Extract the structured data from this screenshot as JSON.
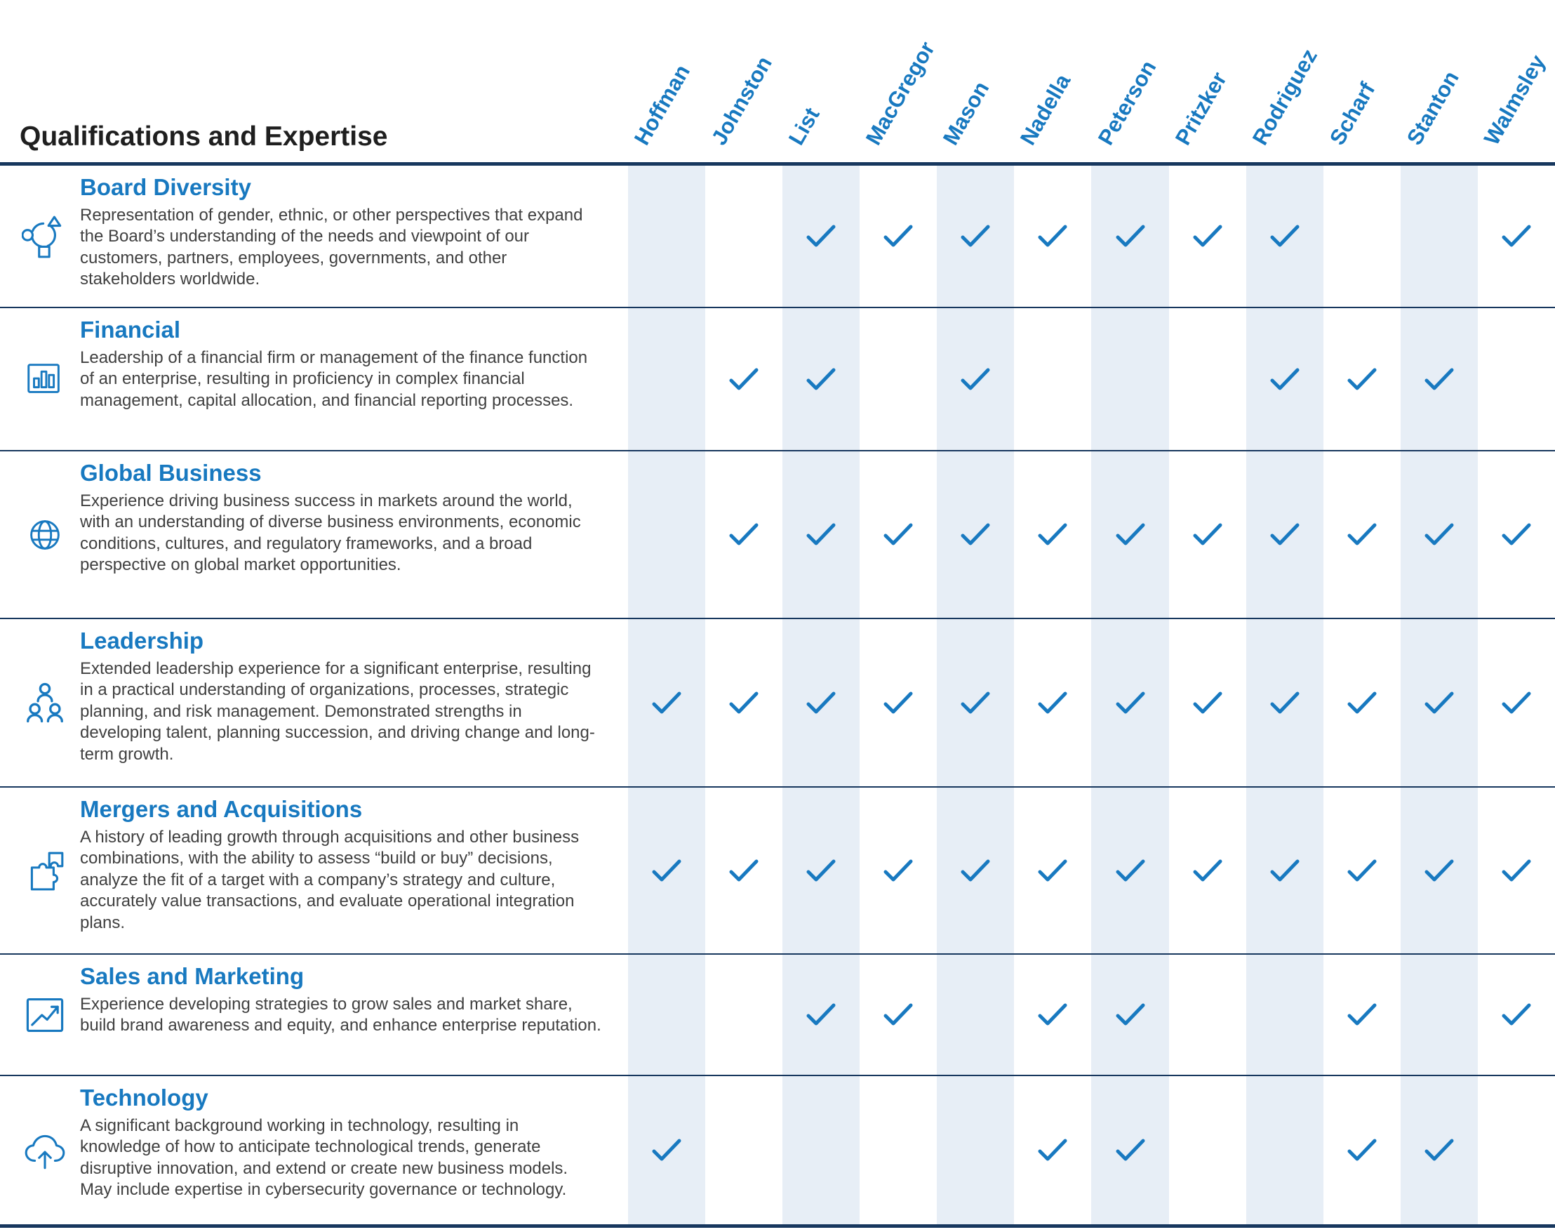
{
  "table": {
    "title": "Qualifications and Expertise",
    "check_icon": "check-icon",
    "columns": [
      "Hoffman",
      "Johnston",
      "List",
      "MacGregor",
      "Mason",
      "Nadella",
      "Peterson",
      "Pritzker",
      "Rodriguez",
      "Scharf",
      "Stanton",
      "Walmsley"
    ],
    "rows": [
      {
        "icon": "diversity-icon",
        "title": "Board Diversity",
        "description": "Representation of gender, ethnic, or other perspectives that expand the Board’s understanding of the needs and viewpoint of our customers, partners, employees, governments, and other stakeholders worldwide.",
        "checks": [
          0,
          0,
          1,
          1,
          1,
          1,
          1,
          1,
          1,
          0,
          0,
          1
        ]
      },
      {
        "icon": "financial-icon",
        "title": "Financial",
        "description": "Leadership of a financial firm or management of the finance function of an enterprise, resulting in proficiency in complex financial management, capital allocation, and financial reporting processes.",
        "checks": [
          0,
          1,
          1,
          0,
          1,
          0,
          0,
          0,
          1,
          1,
          1,
          0
        ]
      },
      {
        "icon": "globe-icon",
        "title": "Global Business",
        "description": "Experience driving business success in markets around the world, with an understanding of diverse business environments, economic conditions, cultures, and regulatory frameworks, and a broad perspective on global market opportunities.",
        "checks": [
          0,
          1,
          1,
          1,
          1,
          1,
          1,
          1,
          1,
          1,
          1,
          1
        ]
      },
      {
        "icon": "people-icon",
        "title": "Leadership",
        "description": "Extended leadership experience for a significant enterprise, resulting in a practical understanding of organizations, processes, strategic planning, and risk management. Demonstrated strengths in developing talent, planning succession, and driving change and long-term growth.",
        "checks": [
          1,
          1,
          1,
          1,
          1,
          1,
          1,
          1,
          1,
          1,
          1,
          1
        ]
      },
      {
        "icon": "puzzle-icon",
        "title": "Mergers and Acquisitions",
        "description": "A history of leading growth through acquisitions and other business combinations, with the ability to assess “build or buy” decisions, analyze the fit of a target with a company’s strategy and culture, accurately value transactions, and evaluate operational integration plans.",
        "checks": [
          1,
          1,
          1,
          1,
          1,
          1,
          1,
          1,
          1,
          1,
          1,
          1
        ]
      },
      {
        "icon": "trend-chart-icon",
        "title": "Sales and Marketing",
        "description": "Experience developing strategies to grow sales and market share, build brand awareness and equity, and enhance enterprise reputation.",
        "checks": [
          0,
          0,
          1,
          1,
          0,
          1,
          1,
          0,
          0,
          1,
          0,
          1
        ]
      },
      {
        "icon": "cloud-icon",
        "title": "Technology",
        "description": "A significant background working in technology, resulting in knowledge of how to anticipate technological trends, generate disruptive innovation, and extend or create new business models. May include expertise in cybersecurity governance or technology.",
        "checks": [
          1,
          0,
          0,
          0,
          0,
          1,
          1,
          0,
          0,
          1,
          1,
          0
        ]
      }
    ],
    "colors": {
      "accent": "#1879c0",
      "column_shade": "#e7eef6",
      "divider": "#17375e",
      "body_text": "#404040",
      "heading_text": "#1f1f1f"
    }
  }
}
